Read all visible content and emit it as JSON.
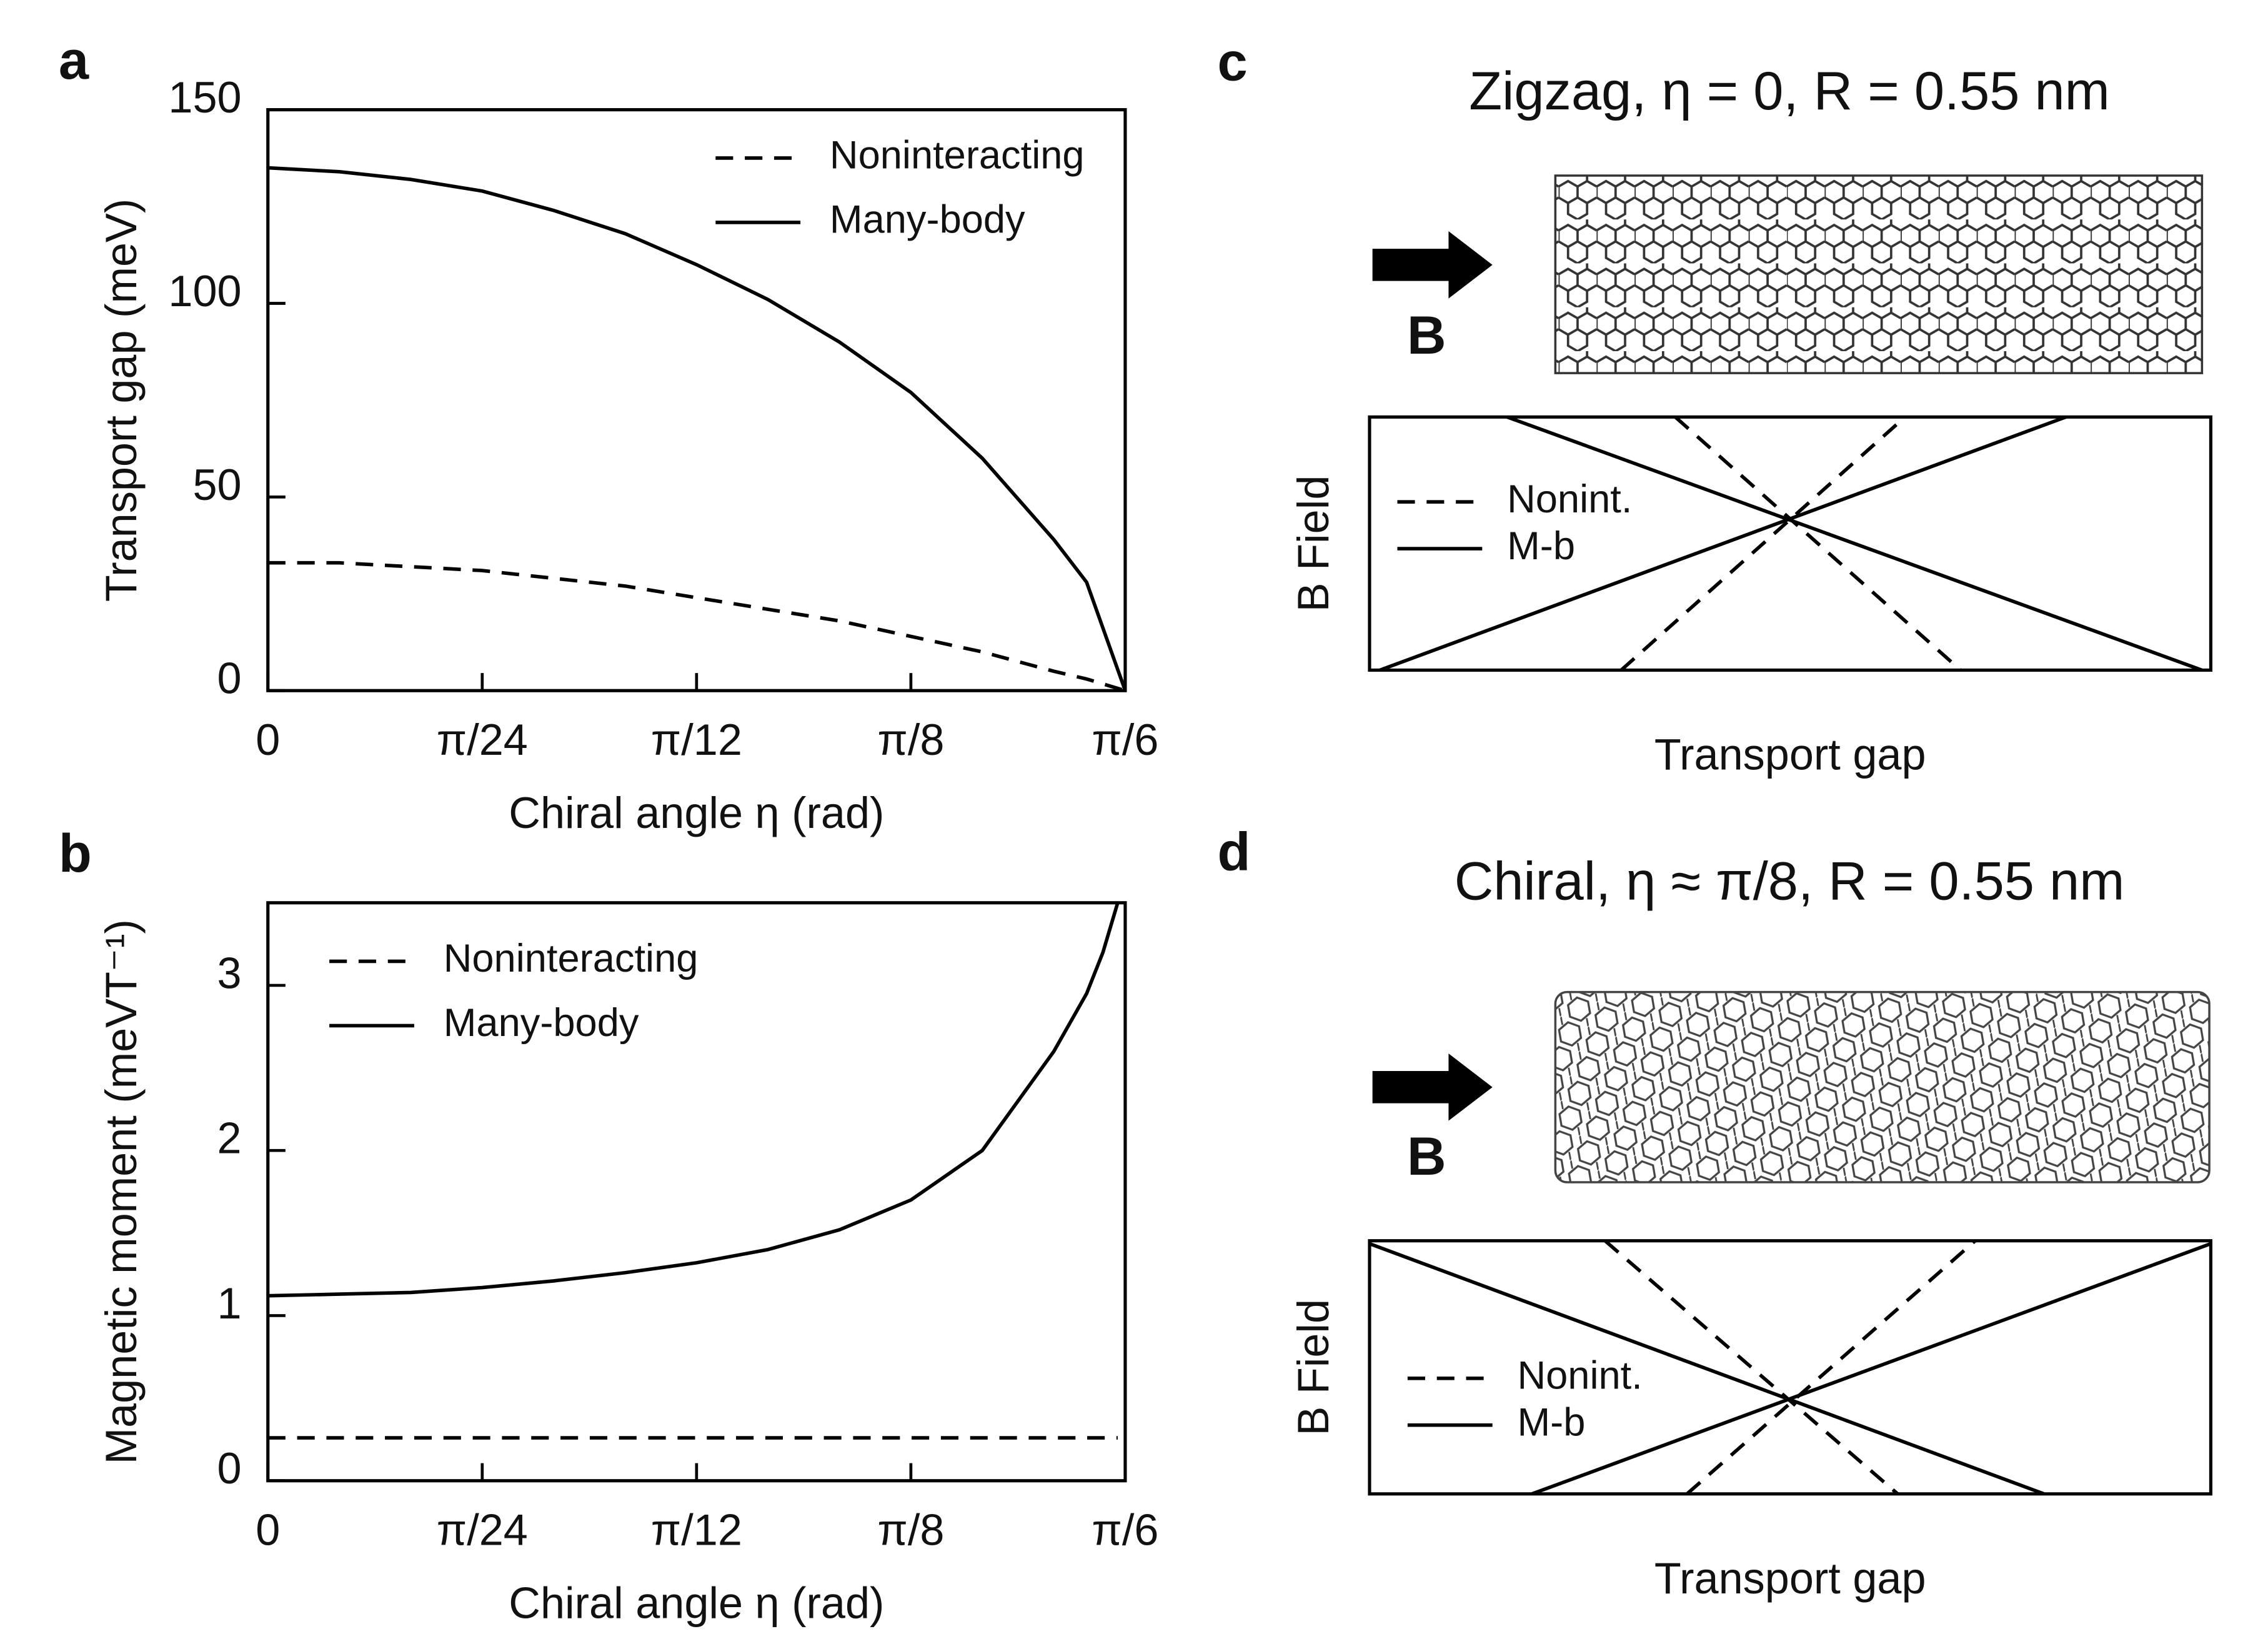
{
  "chart_data": [
    {
      "type": "line",
      "panel_label": "a",
      "xlabel": "Chiral angle η (rad)",
      "ylabel": "Transport gap (meV)",
      "xlim": [
        0,
        0.5236
      ],
      "ylim": [
        0,
        150
      ],
      "xticks": [
        0,
        {
          "value": 0.1309,
          "label": "π/24"
        },
        {
          "value": 0.2618,
          "label": "π/12"
        },
        {
          "value": 0.3927,
          "label": "π/8"
        },
        {
          "value": 0.5236,
          "label": "π/6"
        }
      ],
      "yticks": [
        0,
        50,
        100,
        150
      ],
      "legend": "upper right",
      "x": [
        0,
        0.0436,
        0.0873,
        0.1309,
        0.1745,
        0.2182,
        0.2618,
        0.3054,
        0.3491,
        0.3927,
        0.4363,
        0.48,
        0.5,
        0.5236
      ],
      "series": [
        {
          "name": "Noninteracting",
          "color": "#000000",
          "linestyle": "dashed",
          "values": [
            33,
            33,
            32,
            31,
            29,
            27,
            24,
            21,
            18,
            14,
            10,
            5,
            3,
            0
          ]
        },
        {
          "name": "Many-body",
          "color": "#000000",
          "linestyle": "solid",
          "values": [
            135,
            134,
            132,
            129,
            124,
            118,
            110,
            101,
            90,
            77,
            60,
            39,
            28,
            0
          ]
        }
      ]
    },
    {
      "type": "line",
      "panel_label": "b",
      "xlabel": "Chiral angle η (rad)",
      "ylabel": "Magnetic moment (meVT⁻¹)",
      "xlim": [
        0,
        0.5236
      ],
      "ylim": [
        0,
        3.5
      ],
      "xticks": [
        0,
        {
          "value": 0.1309,
          "label": "π/24"
        },
        {
          "value": 0.2618,
          "label": "π/12"
        },
        {
          "value": 0.3927,
          "label": "π/8"
        },
        {
          "value": 0.5236,
          "label": "π/6"
        }
      ],
      "yticks": [
        0,
        1,
        2,
        3
      ],
      "legend": "upper left",
      "x": [
        0,
        0.0436,
        0.0873,
        0.1309,
        0.1745,
        0.2182,
        0.2618,
        0.3054,
        0.3491,
        0.3927,
        0.4363,
        0.48,
        0.5,
        0.51,
        0.519
      ],
      "series": [
        {
          "name": "Noninteracting",
          "color": "#000000",
          "linestyle": "dashed",
          "values": [
            0.26,
            0.26,
            0.26,
            0.26,
            0.26,
            0.26,
            0.26,
            0.26,
            0.26,
            0.26,
            0.26,
            0.26,
            0.26,
            0.26,
            0.26
          ]
        },
        {
          "name": "Many-body",
          "color": "#000000",
          "linestyle": "solid",
          "values": [
            1.12,
            1.13,
            1.14,
            1.17,
            1.21,
            1.26,
            1.32,
            1.4,
            1.52,
            1.7,
            2.0,
            2.6,
            2.95,
            3.2,
            3.5
          ]
        }
      ]
    },
    {
      "type": "schematic",
      "panel_label": "c",
      "title": "Zigzag, η = 0, R = 0.55 nm",
      "annotation": "B",
      "xlabel": "Transport gap",
      "ylabel": "B Field",
      "series": [
        {
          "name": "Nonint.",
          "linestyle": "dashed"
        },
        {
          "name": "M-b",
          "linestyle": "solid"
        }
      ]
    },
    {
      "type": "schematic",
      "panel_label": "d",
      "title": "Chiral, η ≈ π/8, R = 0.55 nm",
      "annotation": "B",
      "xlabel": "Transport gap",
      "ylabel": "B Field",
      "series": [
        {
          "name": "Nonint.",
          "linestyle": "dashed"
        },
        {
          "name": "M-b",
          "linestyle": "solid"
        }
      ]
    }
  ]
}
